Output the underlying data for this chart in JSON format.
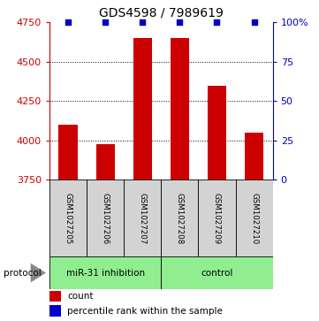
{
  "title": "GDS4598 / 7989619",
  "samples": [
    "GSM1027205",
    "GSM1027206",
    "GSM1027207",
    "GSM1027208",
    "GSM1027209",
    "GSM1027210"
  ],
  "counts": [
    4100,
    3975,
    4650,
    4650,
    4350,
    4050
  ],
  "percentiles": [
    100,
    100,
    100,
    100,
    100,
    100
  ],
  "ylim_left": [
    3750,
    4750
  ],
  "ylim_right": [
    0,
    100
  ],
  "yticks_left": [
    3750,
    4000,
    4250,
    4500,
    4750
  ],
  "yticks_right": [
    0,
    25,
    50,
    75,
    100
  ],
  "ytick_labels_right": [
    "0",
    "25",
    "50",
    "75",
    "100%"
  ],
  "bar_color": "#cc0000",
  "blue_marker_color": "#0000cc",
  "groups": [
    {
      "label": "miR-31 inhibition",
      "indices": [
        0,
        1,
        2
      ],
      "color": "#90ee90"
    },
    {
      "label": "control",
      "indices": [
        3,
        4,
        5
      ],
      "color": "#90ee90"
    }
  ],
  "protocol_label": "protocol",
  "legend_count_label": "count",
  "legend_pct_label": "percentile rank within the sample",
  "sample_box_color": "#d3d3d3",
  "title_fontsize": 10,
  "tick_fontsize": 8,
  "bar_width": 0.5
}
